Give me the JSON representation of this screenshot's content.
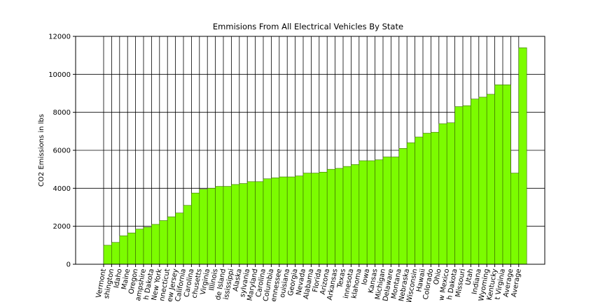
{
  "chart_data": {
    "type": "bar",
    "title": "Emmisions From All Electrical Vehicles By State",
    "ylabel": "CO2 Emissions in lbs",
    "categories": [
      "Vermont",
      "shington",
      "Idaho",
      "Maine",
      "Oregon",
      "ampshire",
      "h Dakota",
      "New York",
      "nnecticut",
      "ew Jersey",
      "California",
      "Carolina",
      "chusetts",
      "Virginia",
      "Illinois",
      "de Island",
      "ississippi",
      "Alaska",
      "sylvania",
      "Maryland",
      "Carolina",
      "Columbia",
      "ennessee",
      "ouisiana",
      "Georgia",
      "Nevada",
      "Alabama",
      "Florida",
      "Arizona",
      "Arkansas",
      "Texas",
      "innesota",
      "klahoma",
      "Iowa",
      "Kansas",
      "Michigan",
      "Delaware",
      "Montana",
      "Nebraska",
      "Wisconsin",
      "Hawaii",
      "Colorado",
      "Ohio",
      "w Mexico",
      "h Dakota",
      "Missouri",
      "Utah",
      "Indiana",
      "Wyoming",
      "Kentucky",
      "t Virginia",
      "Average",
      "Average"
    ],
    "values": [
      1000,
      1150,
      1500,
      1650,
      1850,
      1950,
      2100,
      2300,
      2500,
      2700,
      3100,
      3750,
      3950,
      4000,
      4100,
      4100,
      4200,
      4250,
      4350,
      4350,
      4500,
      4550,
      4600,
      4600,
      4650,
      4800,
      4800,
      4850,
      5000,
      5050,
      5150,
      5250,
      5450,
      5450,
      5500,
      5650,
      5650,
      6100,
      6400,
      6700,
      6900,
      6950,
      7400,
      7450,
      8300,
      8350,
      8700,
      8800,
      8950,
      9450,
      9450,
      4800,
      11400
    ],
    "color": "#7cfc00",
    "ylim": [
      0,
      12000
    ],
    "yticks": [
      0,
      2000,
      4000,
      6000,
      8000,
      10000,
      12000
    ],
    "grid": true
  }
}
